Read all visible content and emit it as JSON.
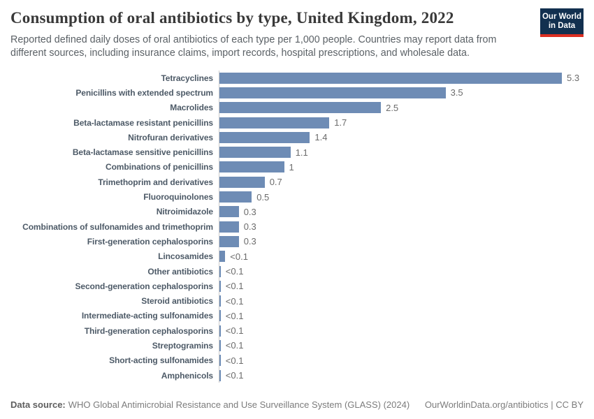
{
  "chart_data": {
    "type": "bar",
    "orientation": "horizontal",
    "title": "Consumption of oral antibiotics by type, United Kingdom, 2022",
    "subtitle_line1": "Reported defined daily doses of oral antibiotics of each type per 1,000 people. Countries may report data from",
    "subtitle_line2": "different sources, including insurance claims, import records, hospital prescriptions, and wholesale data.",
    "xlabel": "",
    "ylabel": "",
    "xlim": [
      0,
      5.3
    ],
    "grid": false,
    "legend": false,
    "bar_color": "#6e8cb5",
    "axis_line_color": "#cccccc",
    "categories": [
      "Tetracyclines",
      "Penicillins with extended spectrum",
      "Macrolides",
      "Beta-lactamase resistant penicillins",
      "Nitrofuran derivatives",
      "Beta-lactamase sensitive penicillins",
      "Combinations of penicillins",
      "Trimethoprim and derivatives",
      "Fluoroquinolones",
      "Nitroimidazole",
      "Combinations of sulfonamides and trimethoprim",
      "First-generation cephalosporins",
      "Lincosamides",
      "Other antibiotics",
      "Second-generation cephalosporins",
      "Steroid antibiotics",
      "Intermediate-acting sulfonamides",
      "Third-generation cephalosporins",
      "Streptogramins",
      "Short-acting sulfonamides",
      "Amphenicols"
    ],
    "values": [
      5.3,
      3.5,
      2.5,
      1.7,
      1.4,
      1.1,
      1,
      0.7,
      0.5,
      0.3,
      0.3,
      0.3,
      0.09,
      0.02,
      0.02,
      0.02,
      0.02,
      0.02,
      0.02,
      0.02,
      0.02
    ],
    "value_labels": [
      "5.3",
      "3.5",
      "2.5",
      "1.7",
      "1.4",
      "1.1",
      "1",
      "0.7",
      "0.5",
      "0.3",
      "0.3",
      "0.3",
      "<0.1",
      "<0.1",
      "<0.1",
      "<0.1",
      "<0.1",
      "<0.1",
      "<0.1",
      "<0.1",
      "<0.1"
    ]
  },
  "logo": {
    "line1": "Our World",
    "line2": "in Data",
    "bg_color": "#12304f",
    "accent_color": "#dc2f22"
  },
  "footer": {
    "datasource_label": "Data source:",
    "datasource_text": "WHO Global Antimicrobial Resistance and Use Surveillance System (GLASS) (2024)",
    "credit": "OurWorldinData.org/antibiotics | CC BY"
  }
}
